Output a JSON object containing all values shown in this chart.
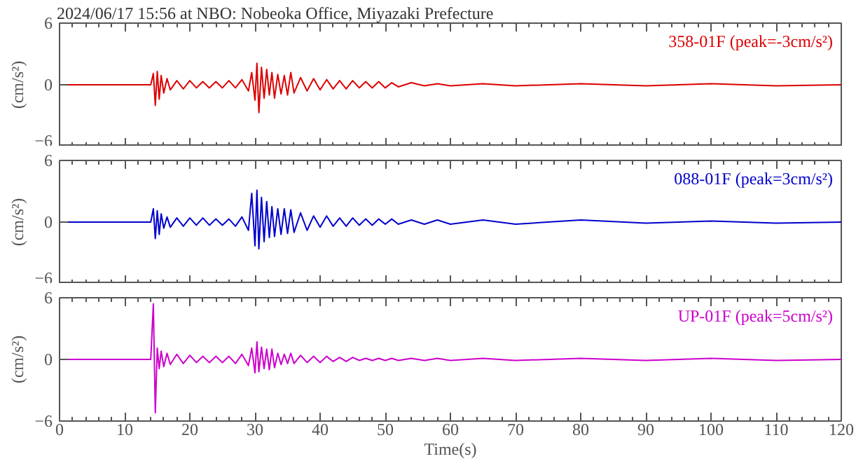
{
  "chart_data": [
    {
      "type": "line",
      "title": "2024/06/17 15:56 at NBO: Nobeoka Office, Miyazaki Prefecture",
      "ylabel": "(cm/s²)",
      "tick_labels": "y",
      "x": [
        0,
        14,
        14.4,
        14.7,
        15,
        15.3,
        15.6,
        16,
        16.5,
        17,
        18,
        19,
        20,
        21,
        22,
        23,
        24,
        25,
        26,
        27,
        28,
        29,
        29.5,
        30,
        30.3,
        30.6,
        31,
        31.4,
        31.8,
        32.2,
        32.6,
        33,
        33.5,
        34,
        34.5,
        35,
        35.5,
        36,
        37,
        38,
        39,
        40,
        41,
        42,
        43,
        44,
        45,
        46,
        47,
        48,
        49,
        50,
        51,
        52,
        54,
        56,
        58,
        60,
        65,
        70,
        80,
        90,
        100,
        110,
        120
      ],
      "series": [
        {
          "name": "358-01F (peak=-3cm/s²)",
          "color": "#dd0000",
          "values": [
            0,
            0,
            1.1,
            -2.0,
            1.3,
            -1.4,
            0.9,
            -0.8,
            0.6,
            -0.5,
            0.4,
            -0.4,
            0.4,
            -0.3,
            0.3,
            -0.3,
            0.3,
            -0.3,
            0.4,
            -0.3,
            0.5,
            -0.6,
            1.2,
            -1.5,
            2.1,
            -2.7,
            1.7,
            -1.3,
            1.5,
            -1.0,
            1.2,
            -1.3,
            1.0,
            -0.9,
            0.9,
            -1.0,
            1.2,
            -0.8,
            0.7,
            -0.6,
            0.6,
            -0.5,
            0.5,
            -0.4,
            0.4,
            -0.4,
            0.4,
            -0.3,
            0.3,
            -0.3,
            0.3,
            -0.3,
            0.2,
            -0.2,
            0.2,
            -0.1,
            0.1,
            -0.1,
            0.1,
            -0.1,
            0.1,
            -0.1,
            0.1,
            -0.1,
            0
          ]
        }
      ],
      "xlim": [
        0,
        120
      ],
      "ylim": [
        -6,
        6
      ],
      "xticks": [
        0,
        10,
        20,
        30,
        40,
        50,
        60,
        70,
        80,
        90,
        100,
        110,
        120
      ],
      "yticks": [
        -6,
        0,
        6
      ]
    },
    {
      "type": "line",
      "ylabel": "(cm/s²)",
      "tick_labels": "y",
      "x": [
        0,
        14,
        14.4,
        14.7,
        15,
        15.3,
        15.6,
        16,
        16.5,
        17,
        18,
        19,
        20,
        21,
        22,
        23,
        24,
        25,
        26,
        27,
        28,
        29,
        29.5,
        30,
        30.3,
        30.6,
        31,
        31.4,
        31.8,
        32.2,
        32.6,
        33,
        33.5,
        34,
        34.5,
        35,
        35.5,
        36,
        37,
        38,
        39,
        40,
        41,
        42,
        43,
        44,
        45,
        46,
        47,
        48,
        49,
        50,
        51,
        52,
        54,
        56,
        58,
        60,
        65,
        70,
        80,
        90,
        100,
        110,
        120
      ],
      "series": [
        {
          "name": "088-01F (peak=3cm/s²)",
          "color": "#0000cc",
          "values": [
            0,
            0,
            1.3,
            -1.6,
            1.1,
            -1.2,
            0.8,
            -0.6,
            0.5,
            -0.5,
            0.4,
            -0.4,
            0.4,
            -0.3,
            0.4,
            -0.3,
            0.3,
            -0.3,
            0.3,
            -0.4,
            0.5,
            -0.8,
            2.8,
            -2.3,
            3.1,
            -2.6,
            2.4,
            -1.9,
            2.0,
            -1.5,
            1.5,
            -1.4,
            1.3,
            -1.2,
            1.3,
            -1.1,
            1.2,
            -1.0,
            0.9,
            -0.8,
            0.6,
            -0.5,
            0.6,
            -0.4,
            0.4,
            -0.4,
            0.4,
            -0.3,
            0.3,
            -0.3,
            0.3,
            -0.2,
            0.3,
            -0.2,
            0.2,
            -0.2,
            0.2,
            -0.2,
            0.2,
            -0.2,
            0.2,
            -0.1,
            0.1,
            -0.1,
            0
          ]
        }
      ],
      "xlim": [
        0,
        120
      ],
      "ylim": [
        -6,
        6
      ],
      "xticks": [
        0,
        10,
        20,
        30,
        40,
        50,
        60,
        70,
        80,
        90,
        100,
        110,
        120
      ],
      "yticks": [
        -6,
        0,
        6
      ]
    },
    {
      "type": "line",
      "ylabel": "(cm/s²)",
      "xlabel": "Time(s)",
      "x": [
        0,
        14,
        14.4,
        14.7,
        15,
        15.3,
        15.6,
        16,
        16.5,
        17,
        18,
        19,
        20,
        21,
        22,
        23,
        24,
        25,
        26,
        27,
        28,
        29,
        29.5,
        30,
        30.3,
        30.6,
        31,
        31.4,
        31.8,
        32.2,
        32.6,
        33,
        33.5,
        34,
        34.5,
        35,
        35.5,
        36,
        37,
        38,
        39,
        40,
        41,
        42,
        43,
        44,
        45,
        46,
        47,
        48,
        49,
        50,
        51,
        52,
        54,
        56,
        58,
        60,
        65,
        70,
        80,
        90,
        100,
        110,
        120
      ],
      "series": [
        {
          "name": "UP-01F (peak=5cm/s²)",
          "color": "#cc00cc",
          "values": [
            0,
            0,
            5.4,
            -5.2,
            1.1,
            -0.9,
            0.8,
            -0.7,
            0.6,
            -0.5,
            0.5,
            -0.4,
            0.4,
            -0.3,
            0.3,
            -0.3,
            0.3,
            -0.3,
            0.3,
            -0.4,
            0.5,
            -0.6,
            1.1,
            -1.3,
            1.7,
            -1.2,
            1.2,
            -0.9,
            1.0,
            -1.0,
            1.0,
            -0.8,
            0.6,
            -0.5,
            0.5,
            -0.4,
            0.6,
            -0.4,
            0.4,
            -0.3,
            0.3,
            -0.3,
            0.3,
            -0.2,
            0.2,
            -0.2,
            0.2,
            -0.1,
            0.1,
            -0.1,
            0.1,
            -0.1,
            0.1,
            -0.1,
            0.1,
            -0.1,
            0.1,
            -0.1,
            0.1,
            -0.1,
            0.1,
            -0.1,
            0.1,
            -0.1,
            0
          ]
        }
      ],
      "xlim": [
        0,
        120
      ],
      "ylim": [
        -6,
        6
      ],
      "xticks": [
        0,
        10,
        20,
        30,
        40,
        50,
        60,
        70,
        80,
        90,
        100,
        110,
        120
      ],
      "yticks": [
        -6,
        0,
        6
      ]
    }
  ]
}
